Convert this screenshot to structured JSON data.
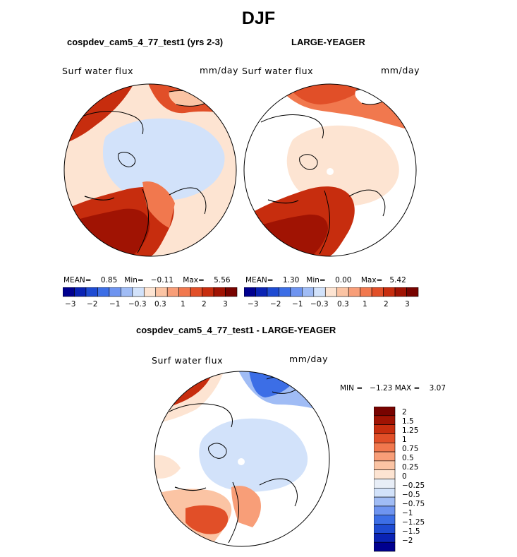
{
  "figure": {
    "title": "DJF",
    "panel1_title": "cospdev_cam5_4_77_test1 (yrs 2-3)",
    "panel2_title": "LARGE-YEAGER",
    "panel3_title": "cospdev_cam5_4_77_test1 - LARGE-YEAGER"
  },
  "panels": [
    {
      "variable": "Surf water flux",
      "units": "mm/day",
      "stats": {
        "mean_label": "MEAN=",
        "mean": "0.85",
        "min_label": "Min=",
        "min": "−0.11",
        "max_label": "Max=",
        "max": "5.56"
      }
    },
    {
      "variable": "Surf water flux",
      "units": "mm/day",
      "stats": {
        "mean_label": "MEAN=",
        "mean": "1.30",
        "min_label": "Min=",
        "min": "0.00",
        "max_label": "Max=",
        "max": "5.42"
      }
    },
    {
      "variable": "Surf water flux",
      "units": "mm/day",
      "stats": {
        "min_label": "MIN =",
        "min": "−1.23",
        "max_label": "MAX =",
        "max": "3.07"
      }
    }
  ],
  "colorbar_top": {
    "colors": [
      "#00008f",
      "#0a23b4",
      "#1e4bd2",
      "#3c6ee6",
      "#6e94f0",
      "#a0bcf5",
      "#d2e2fa",
      "#fde4d2",
      "#fbc4a4",
      "#f89e78",
      "#f1784e",
      "#e14f28",
      "#c72d0e",
      "#a01303",
      "#780300"
    ],
    "labels": [
      "−3",
      "−2",
      "−1",
      "−0.3",
      "0.3",
      "1",
      "2",
      "3"
    ]
  },
  "colorbar_diff": {
    "colors": [
      "#00008f",
      "#0a23b4",
      "#1e4bd2",
      "#3c6ee6",
      "#6e94f0",
      "#a0bcf5",
      "#d2e2fa",
      "#e8eef7",
      "#fde4d2",
      "#fbc4a4",
      "#f89e78",
      "#f1784e",
      "#e14f28",
      "#c72d0e",
      "#a01303",
      "#780300"
    ],
    "labels": [
      "−2",
      "−1.5",
      "−1.25",
      "−1",
      "−0.75",
      "−0.5",
      "−0.25",
      "0",
      "0.25",
      "0.5",
      "0.75",
      "1",
      "1.25",
      "1.5",
      "2"
    ]
  },
  "chart_data": [
    {
      "type": "heatmap",
      "projection": "north polar stereographic",
      "title": "cospdev_cam5_4_77_test1 (yrs 2-3)",
      "season": "DJF",
      "variable": "Surf water flux",
      "units": "mm/day",
      "levels": [
        -3,
        -2.5,
        -2,
        -1.5,
        -1,
        -0.5,
        -0.3,
        0.3,
        0.5,
        1,
        1.5,
        2,
        2.5,
        3
      ],
      "mean": 0.85,
      "min": -0.11,
      "max": 5.56
    },
    {
      "type": "heatmap",
      "projection": "north polar stereographic",
      "title": "LARGE-YEAGER",
      "season": "DJF",
      "variable": "Surf water flux",
      "units": "mm/day",
      "levels": [
        -3,
        -2.5,
        -2,
        -1.5,
        -1,
        -0.5,
        -0.3,
        0.3,
        0.5,
        1,
        1.5,
        2,
        2.5,
        3
      ],
      "mean": 1.3,
      "min": 0.0,
      "max": 5.42
    },
    {
      "type": "heatmap",
      "projection": "north polar stereographic",
      "title": "cospdev_cam5_4_77_test1 - LARGE-YEAGER",
      "season": "DJF",
      "variable": "Surf water flux",
      "units": "mm/day",
      "levels": [
        -2,
        -1.5,
        -1.25,
        -1,
        -0.75,
        -0.5,
        -0.25,
        0,
        0.25,
        0.5,
        0.75,
        1,
        1.25,
        1.5,
        2
      ],
      "min": -1.23,
      "max": 3.07
    }
  ]
}
